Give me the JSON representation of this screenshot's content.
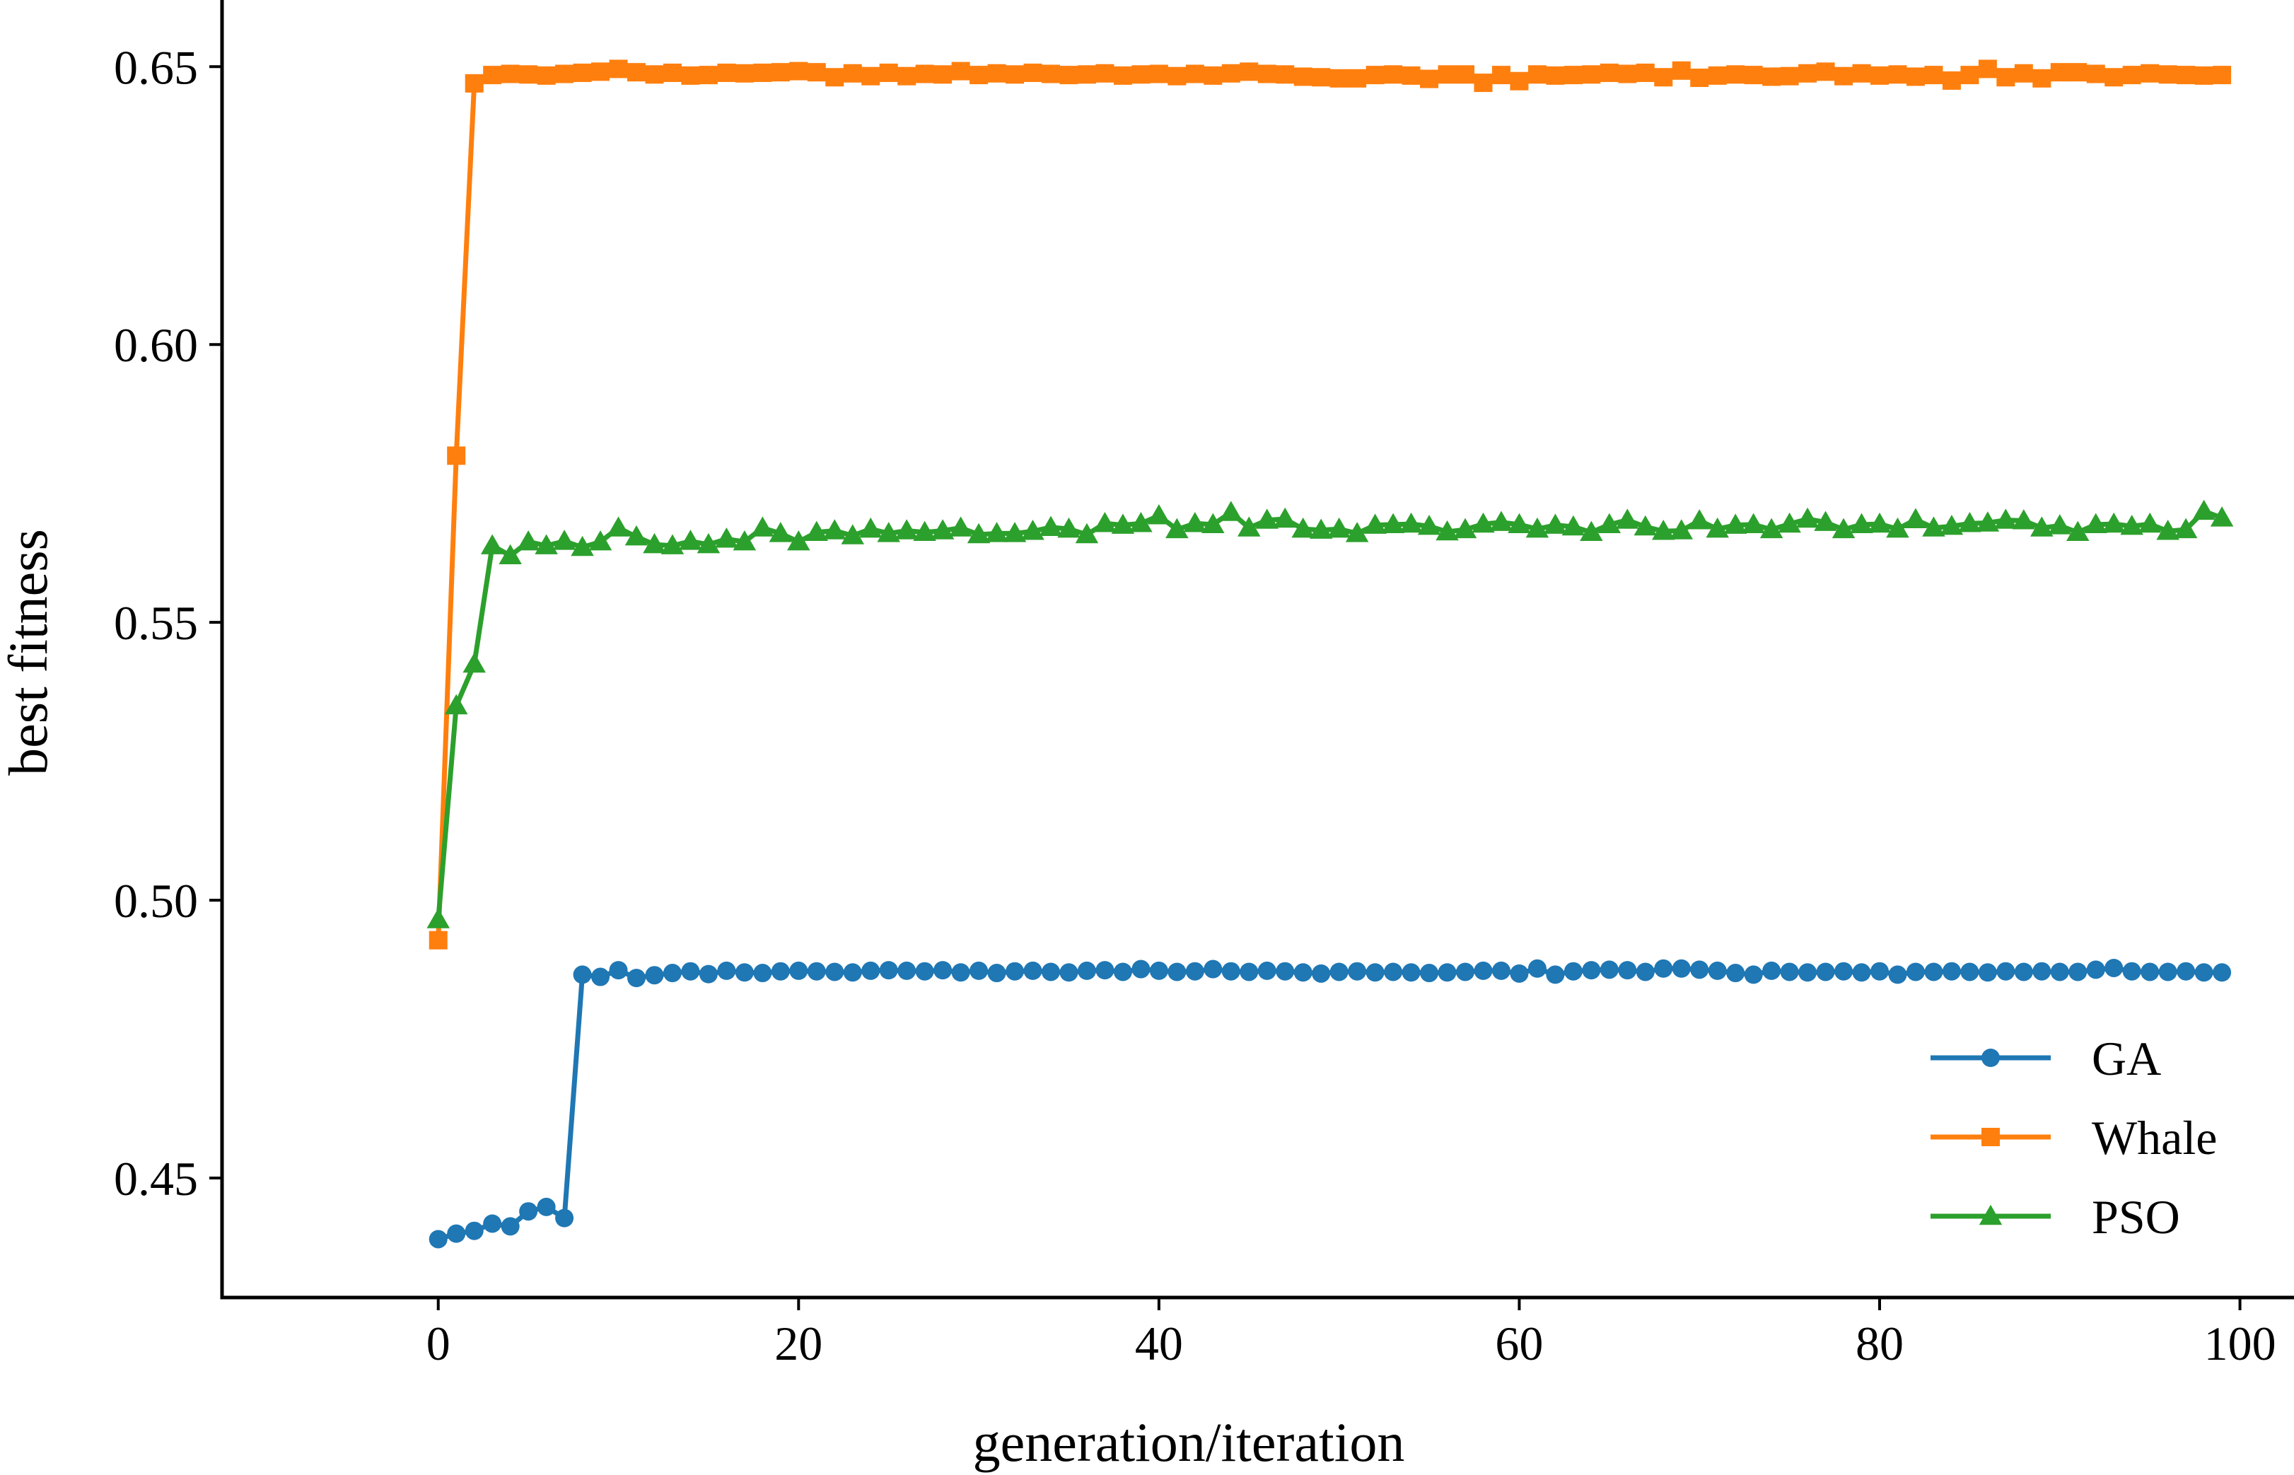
{
  "chart_data": {
    "type": "line",
    "xlabel": "generation/iteration",
    "ylabel": "best fitness",
    "xlim": [
      -12,
      103
    ],
    "ylim": [
      0.4285,
      0.662
    ],
    "xticks": [
      0,
      20,
      40,
      60,
      80,
      100
    ],
    "xtick_labels": [
      "0",
      "20",
      "40",
      "60",
      "80",
      "100"
    ],
    "yticks": [
      0.45,
      0.5,
      0.55,
      0.6,
      0.65
    ],
    "ytick_labels": [
      "0.45",
      "0.50",
      "0.55",
      "0.60",
      "0.65"
    ],
    "grid": false,
    "legend_position": "lower-right",
    "series": [
      {
        "name": "GA",
        "color": "#1f77b4",
        "marker": "circle",
        "x": [
          0,
          1,
          2,
          3,
          4,
          5,
          6,
          7,
          8,
          9,
          10,
          11,
          12,
          13,
          14,
          15,
          16,
          17,
          18,
          19,
          20,
          21,
          22,
          23,
          24,
          25,
          26,
          27,
          28,
          29,
          30,
          31,
          32,
          33,
          34,
          35,
          36,
          37,
          38,
          39,
          40,
          41,
          42,
          43,
          44,
          45,
          46,
          47,
          48,
          49,
          50,
          51,
          52,
          53,
          54,
          55,
          56,
          57,
          58,
          59,
          60,
          61,
          62,
          63,
          64,
          65,
          66,
          67,
          68,
          69,
          70,
          71,
          72,
          73,
          74,
          75,
          76,
          77,
          78,
          79,
          80,
          81,
          82,
          83,
          84,
          85,
          86,
          87,
          88,
          89,
          90,
          91,
          92,
          93,
          94,
          95,
          96,
          97,
          98,
          99
        ],
        "values": [
          0.439,
          0.44,
          0.4405,
          0.4418,
          0.4413,
          0.444,
          0.4448,
          0.4428,
          0.4866,
          0.4862,
          0.4874,
          0.486,
          0.4865,
          0.4869,
          0.4872,
          0.4867,
          0.4873,
          0.487,
          0.4869,
          0.4872,
          0.4873,
          0.4872,
          0.4871,
          0.487,
          0.4873,
          0.4874,
          0.4873,
          0.4872,
          0.4874,
          0.487,
          0.4873,
          0.4869,
          0.4872,
          0.4873,
          0.4871,
          0.487,
          0.4873,
          0.4874,
          0.4871,
          0.4876,
          0.4873,
          0.4871,
          0.4872,
          0.4876,
          0.4872,
          0.4871,
          0.4873,
          0.4872,
          0.487,
          0.4868,
          0.4871,
          0.4872,
          0.487,
          0.4871,
          0.487,
          0.4869,
          0.487,
          0.4871,
          0.4873,
          0.4873,
          0.4868,
          0.4877,
          0.4866,
          0.4872,
          0.4874,
          0.4875,
          0.4874,
          0.4871,
          0.4877,
          0.4877,
          0.4875,
          0.4873,
          0.4869,
          0.4866,
          0.4873,
          0.4871,
          0.487,
          0.4871,
          0.4872,
          0.487,
          0.4872,
          0.4866,
          0.4871,
          0.4871,
          0.4872,
          0.4871,
          0.487,
          0.4872,
          0.4871,
          0.4872,
          0.4871,
          0.4871,
          0.4875,
          0.4878,
          0.4872,
          0.4871,
          0.4871,
          0.4872,
          0.487,
          0.487
        ]
      },
      {
        "name": "Whale",
        "color": "#ff7f0e",
        "marker": "square",
        "x": [
          0,
          1,
          2,
          3,
          4,
          5,
          6,
          7,
          8,
          9,
          10,
          11,
          12,
          13,
          14,
          15,
          16,
          17,
          18,
          19,
          20,
          21,
          22,
          23,
          24,
          25,
          26,
          27,
          28,
          29,
          30,
          31,
          32,
          33,
          34,
          35,
          36,
          37,
          38,
          39,
          40,
          41,
          42,
          43,
          44,
          45,
          46,
          47,
          48,
          49,
          50,
          51,
          52,
          53,
          54,
          55,
          56,
          57,
          58,
          59,
          60,
          61,
          62,
          63,
          64,
          65,
          66,
          67,
          68,
          69,
          70,
          71,
          72,
          73,
          74,
          75,
          76,
          77,
          78,
          79,
          80,
          81,
          82,
          83,
          84,
          85,
          86,
          87,
          88,
          89,
          90,
          91,
          92,
          93,
          94,
          95,
          96,
          97,
          98,
          99
        ],
        "values": [
          0.4928,
          0.58,
          0.647,
          0.6485,
          0.6487,
          0.6486,
          0.6484,
          0.6487,
          0.6489,
          0.6491,
          0.6496,
          0.649,
          0.6486,
          0.6489,
          0.6484,
          0.6485,
          0.6489,
          0.6488,
          0.6489,
          0.649,
          0.6492,
          0.649,
          0.6481,
          0.6488,
          0.6483,
          0.6489,
          0.6483,
          0.6487,
          0.6486,
          0.6492,
          0.6485,
          0.6488,
          0.6486,
          0.6489,
          0.6487,
          0.6485,
          0.6486,
          0.6488,
          0.6484,
          0.6486,
          0.6487,
          0.6483,
          0.6487,
          0.6484,
          0.6488,
          0.6491,
          0.6487,
          0.6486,
          0.6482,
          0.6481,
          0.6479,
          0.6479,
          0.6485,
          0.6486,
          0.6484,
          0.6478,
          0.6486,
          0.6486,
          0.6471,
          0.6485,
          0.6474,
          0.6486,
          0.6484,
          0.6485,
          0.6486,
          0.6489,
          0.6487,
          0.6489,
          0.6481,
          0.6493,
          0.648,
          0.6484,
          0.6486,
          0.6485,
          0.6482,
          0.6483,
          0.6488,
          0.6491,
          0.6483,
          0.6488,
          0.6484,
          0.6486,
          0.6482,
          0.6485,
          0.6475,
          0.6485,
          0.6496,
          0.6481,
          0.6488,
          0.6479,
          0.649,
          0.649,
          0.6487,
          0.6481,
          0.6485,
          0.6488,
          0.6486,
          0.6485,
          0.6484,
          0.6485
        ]
      },
      {
        "name": "PSO",
        "color": "#2ca02c",
        "marker": "triangle",
        "x": [
          0,
          1,
          2,
          3,
          4,
          5,
          6,
          7,
          8,
          9,
          10,
          11,
          12,
          13,
          14,
          15,
          16,
          17,
          18,
          19,
          20,
          21,
          22,
          23,
          24,
          25,
          26,
          27,
          28,
          29,
          30,
          31,
          32,
          33,
          34,
          35,
          36,
          37,
          38,
          39,
          40,
          41,
          42,
          43,
          44,
          45,
          46,
          47,
          48,
          49,
          50,
          51,
          52,
          53,
          54,
          55,
          56,
          57,
          58,
          59,
          60,
          61,
          62,
          63,
          64,
          65,
          66,
          67,
          68,
          69,
          70,
          71,
          72,
          73,
          74,
          75,
          76,
          77,
          78,
          79,
          80,
          81,
          82,
          83,
          84,
          85,
          86,
          87,
          88,
          89,
          90,
          91,
          92,
          93,
          94,
          95,
          96,
          97,
          98,
          99
        ],
        "values": [
          0.4965,
          0.535,
          0.5425,
          0.5638,
          0.562,
          0.5645,
          0.5638,
          0.5646,
          0.5635,
          0.5645,
          0.567,
          0.5654,
          0.564,
          0.5638,
          0.5646,
          0.564,
          0.565,
          0.5645,
          0.567,
          0.566,
          0.5645,
          0.5662,
          0.5665,
          0.5656,
          0.5668,
          0.566,
          0.5665,
          0.5662,
          0.5665,
          0.567,
          0.5658,
          0.566,
          0.566,
          0.5664,
          0.5671,
          0.5668,
          0.5658,
          0.5678,
          0.5675,
          0.5678,
          0.5692,
          0.5667,
          0.5678,
          0.5676,
          0.5698,
          0.567,
          0.5684,
          0.5686,
          0.5668,
          0.5666,
          0.5668,
          0.566,
          0.5675,
          0.5676,
          0.5677,
          0.5673,
          0.5663,
          0.5667,
          0.5677,
          0.568,
          0.5676,
          0.5668,
          0.5675,
          0.5672,
          0.5662,
          0.5676,
          0.5684,
          0.5672,
          0.5664,
          0.5665,
          0.5683,
          0.5668,
          0.5675,
          0.5676,
          0.5667,
          0.5677,
          0.5686,
          0.568,
          0.5667,
          0.5676,
          0.5677,
          0.5668,
          0.5685,
          0.567,
          0.5673,
          0.5678,
          0.5679,
          0.5684,
          0.5683,
          0.567,
          0.5674,
          0.5662,
          0.5676,
          0.5677,
          0.5673,
          0.5677,
          0.5664,
          0.5667,
          0.57,
          0.5688
        ]
      }
    ]
  }
}
